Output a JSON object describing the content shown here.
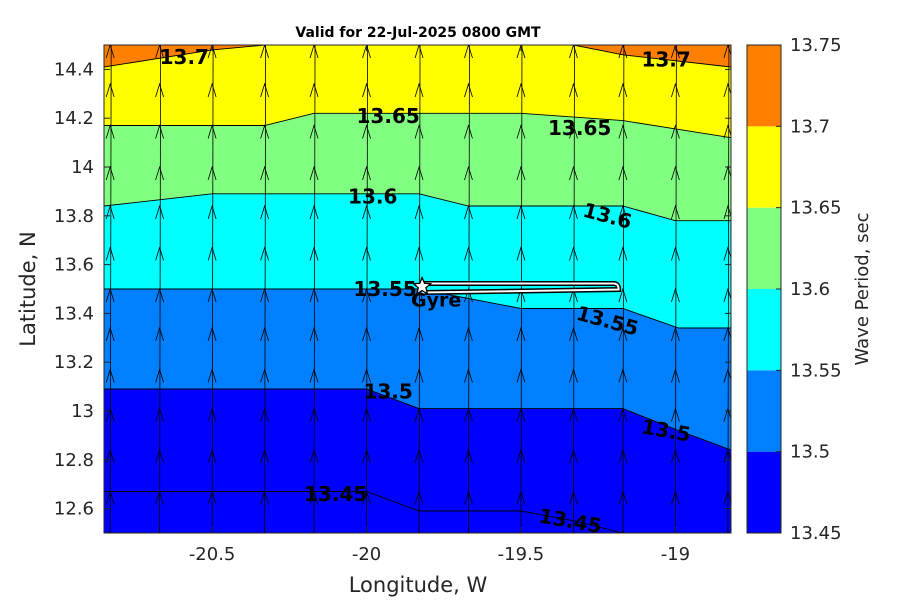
{
  "chart_data": {
    "type": "heatmap",
    "title": "Valid for 22-Jul-2025 0800 GMT",
    "xlabel": "Longitude, W",
    "ylabel": "Latitude, N",
    "colorbar_label": "Wave Period, sec",
    "xlim": [
      -20.85,
      -18.82
    ],
    "ylim": [
      12.5,
      14.5
    ],
    "x_ticks": [
      -20.5,
      -20,
      -19.5,
      -19
    ],
    "x_tick_labels": [
      "-20.5",
      "-20",
      "-19.5",
      "-19"
    ],
    "y_ticks": [
      12.6,
      12.8,
      13.0,
      13.2,
      13.4,
      13.6,
      13.8,
      14.0,
      14.2,
      14.4
    ],
    "y_tick_labels": [
      "12.6",
      "12.8",
      "13",
      "13.2",
      "13.4",
      "13.6",
      "13.8",
      "14",
      "14.2",
      "14.4"
    ],
    "levels": [
      13.45,
      13.5,
      13.55,
      13.6,
      13.65,
      13.7,
      13.75
    ],
    "level_labels": [
      "13.45",
      "13.5",
      "13.55",
      "13.6",
      "13.65",
      "13.7",
      "13.75"
    ],
    "band_colors": [
      "#0000ff",
      "#0080ff",
      "#00ffff",
      "#80ff80",
      "#ffff00",
      "#ff8000"
    ],
    "contours": [
      {
        "level": "13.7",
        "points": [
          [
            -20.85,
            14.41
          ],
          [
            -20.5,
            14.48
          ],
          [
            -20.33,
            14.5
          ],
          [
            -19.8,
            14.5
          ],
          [
            -19.33,
            14.5
          ],
          [
            -19.17,
            14.46
          ],
          [
            -18.82,
            14.41
          ]
        ]
      },
      {
        "level": "13.65",
        "points": [
          [
            -20.85,
            14.17
          ],
          [
            -20.5,
            14.17
          ],
          [
            -20.33,
            14.17
          ],
          [
            -20.17,
            14.22
          ],
          [
            -19.83,
            14.22
          ],
          [
            -19.5,
            14.22
          ],
          [
            -19.17,
            14.19
          ],
          [
            -18.82,
            14.12
          ]
        ]
      },
      {
        "level": "13.6",
        "points": [
          [
            -20.85,
            13.84
          ],
          [
            -20.5,
            13.89
          ],
          [
            -20.33,
            13.89
          ],
          [
            -20.0,
            13.89
          ],
          [
            -19.83,
            13.89
          ],
          [
            -19.67,
            13.84
          ],
          [
            -19.5,
            13.84
          ],
          [
            -19.17,
            13.84
          ],
          [
            -19.0,
            13.78
          ],
          [
            -18.82,
            13.78
          ]
        ]
      },
      {
        "level": "13.55",
        "points": [
          [
            -20.85,
            13.5
          ],
          [
            -20.5,
            13.5
          ],
          [
            -20.0,
            13.5
          ],
          [
            -19.83,
            13.5
          ],
          [
            -19.5,
            13.42
          ],
          [
            -19.17,
            13.42
          ],
          [
            -18.99,
            13.34
          ],
          [
            -18.82,
            13.34
          ]
        ]
      },
      {
        "level": "13.5",
        "points": [
          [
            -20.85,
            13.09
          ],
          [
            -20.5,
            13.09
          ],
          [
            -20.17,
            13.09
          ],
          [
            -20.0,
            13.09
          ],
          [
            -19.83,
            13.01
          ],
          [
            -19.5,
            13.01
          ],
          [
            -19.17,
            13.01
          ],
          [
            -18.99,
            12.92
          ],
          [
            -18.82,
            12.84
          ]
        ]
      },
      {
        "level": "13.45",
        "points": [
          [
            -20.85,
            12.67
          ],
          [
            -20.5,
            12.67
          ],
          [
            -20.17,
            12.67
          ],
          [
            -20.0,
            12.67
          ],
          [
            -19.83,
            12.59
          ],
          [
            -19.5,
            12.59
          ],
          [
            -19.33,
            12.55
          ],
          [
            -19.17,
            12.5
          ]
        ]
      }
    ],
    "contour_labels": [
      {
        "text": "13.7",
        "x": -20.59,
        "y": 14.45,
        "rotate": 0
      },
      {
        "text": "13.7",
        "x": -19.03,
        "y": 14.44,
        "rotate": 0
      },
      {
        "text": "13.65",
        "x": -19.93,
        "y": 14.21,
        "rotate": 0
      },
      {
        "text": "13.65",
        "x": -19.31,
        "y": 14.16,
        "rotate": 0
      },
      {
        "text": "13.6",
        "x": -19.98,
        "y": 13.88,
        "rotate": 0
      },
      {
        "text": "13.6",
        "x": -19.22,
        "y": 13.8,
        "rotate": 15
      },
      {
        "text": "13.55",
        "x": -19.94,
        "y": 13.5,
        "rotate": 0
      },
      {
        "text": "13.55",
        "x": -19.22,
        "y": 13.37,
        "rotate": 15
      },
      {
        "text": "13.5",
        "x": -19.93,
        "y": 13.08,
        "rotate": 0
      },
      {
        "text": "13.5",
        "x": -19.03,
        "y": 12.92,
        "rotate": 10
      },
      {
        "text": "13.45",
        "x": -20.1,
        "y": 12.66,
        "rotate": 0
      },
      {
        "text": "13.45",
        "x": -19.34,
        "y": 12.55,
        "rotate": 10
      }
    ],
    "vector_field": {
      "x": [
        -20.83,
        -20.67,
        -20.5,
        -20.33,
        -20.17,
        -20.0,
        -19.83,
        -19.67,
        -19.5,
        -19.33,
        -19.17,
        -19.0,
        -18.83
      ],
      "y": [
        12.51,
        12.67,
        12.84,
        13.01,
        13.17,
        13.34,
        13.5,
        13.67,
        13.84,
        14.0,
        14.17,
        14.34,
        14.5
      ]
    },
    "marker": {
      "label": "Gyre",
      "x": -19.82,
      "y": 13.51
    },
    "track": [
      [
        -19.82,
        13.51
      ],
      [
        -19.2,
        13.51
      ]
    ],
    "colorbar_ticks": [
      "13.45",
      "13.5",
      "13.55",
      "13.6",
      "13.65",
      "13.7",
      "13.75"
    ]
  }
}
